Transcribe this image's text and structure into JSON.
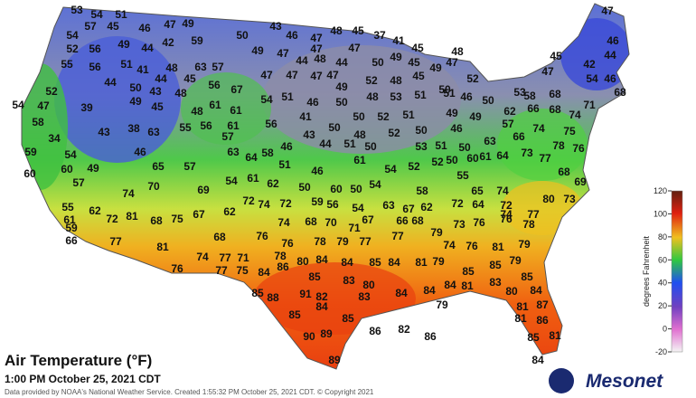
{
  "title": "Air Temperature (°F)",
  "subtitle": "1:00 PM October 25, 2021 CDT",
  "credit": "Data provided by NOAA's National Weather Service. Created 1:55:32 PM October 25, 2021 CDT. © Copyright 2021",
  "brand": "Mesonet",
  "colorbar": {
    "label": "degrees Fahrenheit",
    "lim": [
      -20,
      120
    ],
    "ticks": [
      120,
      100,
      80,
      60,
      40,
      20,
      0,
      -20
    ]
  },
  "stations": [
    53,
    54,
    51,
    57,
    45,
    46,
    47,
    49,
    50,
    43,
    46,
    47,
    48,
    45,
    37,
    41,
    47,
    54,
    52,
    56,
    49,
    44,
    42,
    59,
    49,
    47,
    47,
    47,
    45,
    48,
    45,
    46,
    44,
    55,
    56,
    51,
    41,
    48,
    63,
    57,
    44,
    48,
    44,
    50,
    49,
    45,
    49,
    47,
    52,
    47,
    42,
    53,
    52,
    44,
    50,
    44,
    43,
    48,
    45,
    56,
    67,
    47,
    47,
    47,
    47,
    49,
    52,
    48,
    45,
    50,
    46,
    50,
    54,
    46,
    68,
    68,
    58,
    54,
    47,
    39,
    49,
    45,
    48,
    61,
    61,
    54,
    51,
    46,
    50,
    48,
    53,
    51,
    51,
    62,
    66,
    68,
    71,
    74,
    49,
    49,
    50,
    52,
    51,
    41,
    56,
    58,
    43,
    38,
    63,
    55,
    56,
    61,
    50,
    48,
    52,
    50,
    46,
    57,
    66,
    74,
    75,
    34,
    57,
    43,
    44,
    51,
    63,
    78,
    76,
    59,
    54,
    46,
    63,
    64,
    58,
    46,
    50,
    53,
    51,
    50,
    61,
    64,
    73,
    77,
    60,
    60,
    49,
    65,
    57,
    51,
    46,
    61,
    54,
    52,
    52,
    50,
    60,
    68,
    57,
    54,
    61,
    62,
    50,
    60,
    50,
    54,
    58,
    55,
    65,
    74,
    69,
    74,
    70,
    69,
    72,
    74,
    72,
    59,
    56,
    54,
    63,
    67,
    62,
    72,
    64,
    72,
    80,
    73,
    77,
    74,
    55,
    62,
    61,
    72,
    81,
    68,
    75,
    67,
    74,
    68,
    70,
    67,
    66,
    68,
    73,
    76,
    76,
    78,
    59,
    62,
    71,
    79,
    77,
    79,
    66,
    77,
    68,
    76,
    76,
    78,
    79,
    77,
    74,
    76,
    81,
    78,
    81,
    74,
    77,
    71,
    76,
    77,
    75,
    84,
    86,
    80,
    84,
    85,
    84,
    85,
    84,
    81,
    79,
    85,
    85,
    79,
    83,
    80,
    85,
    84,
    81,
    83,
    85,
    88,
    91,
    82,
    83,
    84,
    84,
    80,
    84,
    79,
    81,
    87,
    85,
    84,
    85,
    81,
    86,
    86,
    82,
    86,
    90,
    89,
    85,
    81,
    89,
    84
  ]
}
